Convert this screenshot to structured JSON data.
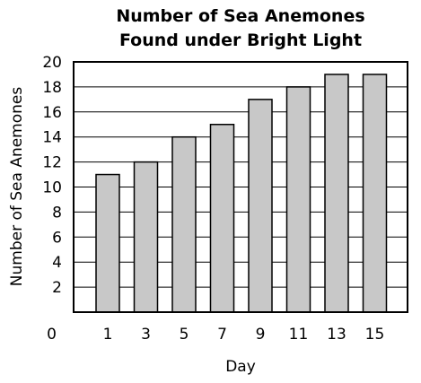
{
  "chart_data": {
    "type": "bar",
    "title_lines": [
      "Number of Sea Anemones",
      "Found under Bright Light"
    ],
    "xlabel": "Day",
    "ylabel": "Number of Sea Anemones",
    "categories": [
      "1",
      "3",
      "5",
      "7",
      "9",
      "11",
      "13",
      "15"
    ],
    "values": [
      11,
      12,
      14,
      15,
      17,
      18,
      19,
      19
    ],
    "ylim": [
      0,
      20
    ],
    "y_ticks": [
      "0",
      "2",
      "4",
      "6",
      "8",
      "10",
      "12",
      "14",
      "16",
      "18",
      "20"
    ],
    "grid": true,
    "legend": "none",
    "colors": {
      "bar_fill": "#c8c8c8",
      "bar_stroke": "#000000",
      "grid": "#000000",
      "frame": "#000000"
    }
  }
}
